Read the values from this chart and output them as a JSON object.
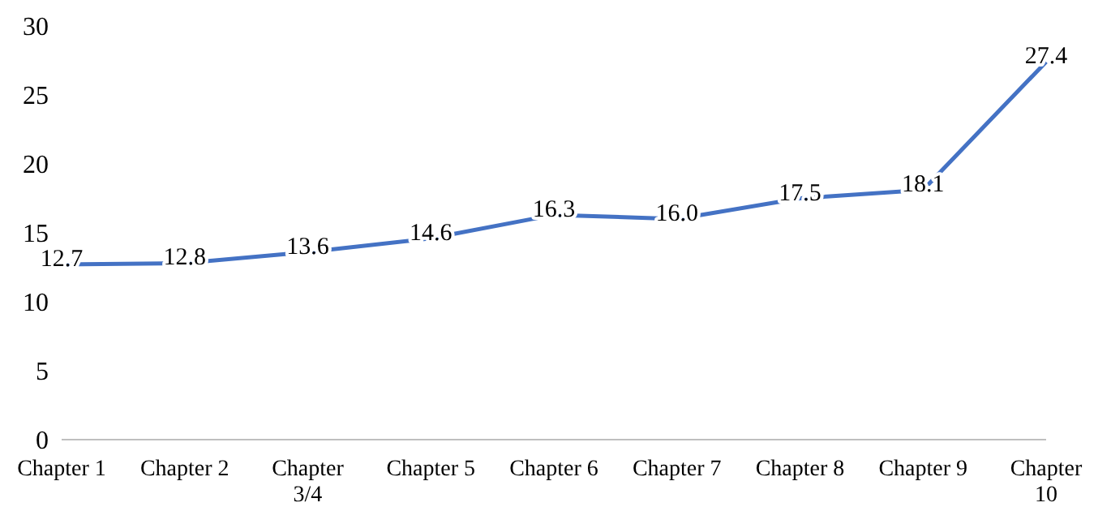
{
  "chart_data": {
    "type": "line",
    "categories": [
      "Chapter 1",
      "Chapter 2",
      "Chapter 3/4",
      "Chapter 5",
      "Chapter 6",
      "Chapter 7",
      "Chapter 8",
      "Chapter 9",
      "Chapter 10"
    ],
    "series": [
      {
        "color": "#4472c4",
        "values": [
          12.7,
          12.8,
          13.6,
          14.6,
          16.3,
          16.0,
          17.5,
          18.1,
          27.4
        ],
        "value_labels": [
          "12.7",
          "12.8",
          "13.6",
          "14.6",
          "16.3",
          "16.0",
          "17.5",
          "18.1",
          "27.4"
        ]
      }
    ],
    "ylim": [
      0,
      30
    ],
    "yticks": [
      0,
      5,
      10,
      15,
      20,
      25,
      30
    ],
    "grid": false,
    "legend": false,
    "marker": "none",
    "line_style": "solid"
  }
}
